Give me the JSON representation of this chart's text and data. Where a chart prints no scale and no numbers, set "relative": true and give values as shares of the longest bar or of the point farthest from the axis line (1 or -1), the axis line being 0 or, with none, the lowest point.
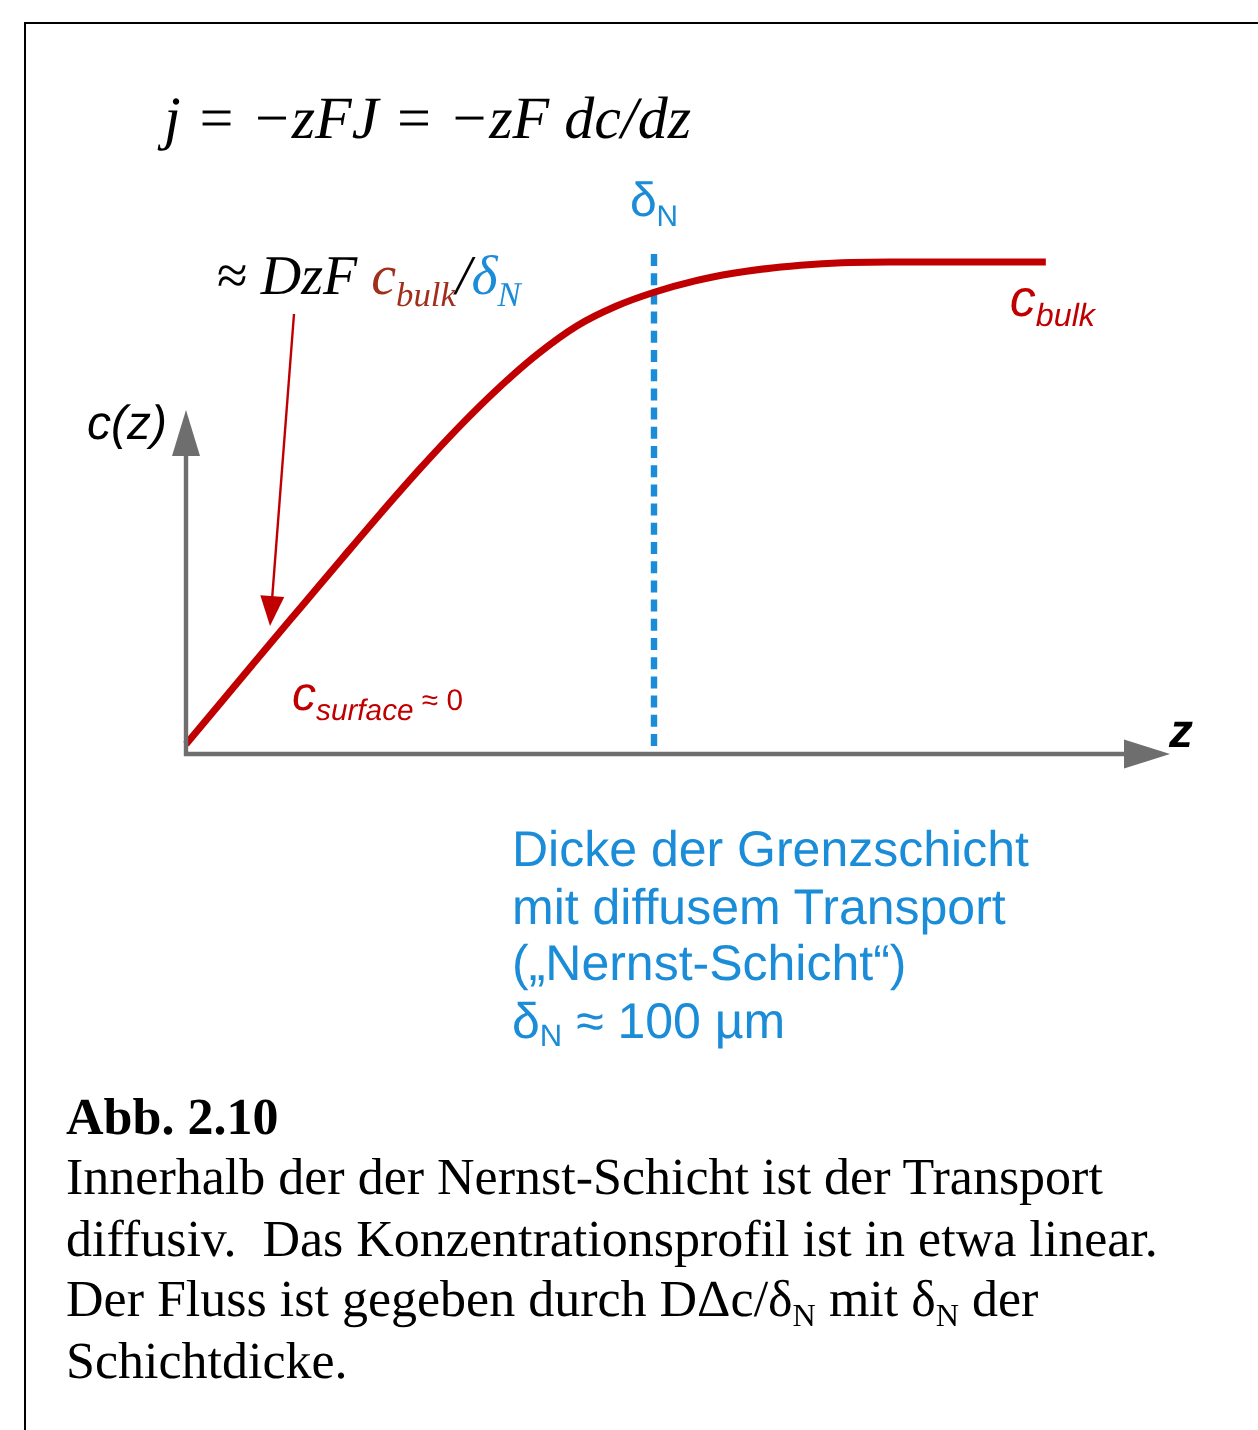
{
  "chart_data": {
    "type": "line",
    "relative": true,
    "xlabel": "z",
    "ylabel": "c(z)",
    "categories": [
      null,
      null,
      null,
      null,
      null,
      null,
      null,
      null,
      null,
      null,
      null,
      null,
      null,
      null,
      null,
      null,
      null,
      null,
      null,
      null,
      null,
      null,
      null
    ],
    "series": [
      {
        "name": "c$_{bulk}$",
        "color": "#c00000",
        "values": [
          0.02,
          0.115,
          0.21,
          0.304,
          0.398,
          0.491,
          0.581,
          0.666,
          0.744,
          0.813,
          0.87,
          0.91,
          0.939,
          0.961,
          0.977,
          0.988,
          0.995,
          0.999,
          1,
          1,
          1,
          1,
          1
        ]
      }
    ],
    "annotations": [
      "j = −zFJ = −zF dc/dz",
      "δ$_{N}$",
      "≈ DzF c$_{bulk}$/δ$_{N}$",
      "c$_{surface}$ ≈ 0",
      "Dicke der Grenzschicht\nmit diffusem Transport\n(„Nernst-Schicht“)\nδ$_{N}$ ≈ 100 µm",
      "Abb. 2.10",
      "Innerhalb der der Nernst-Schicht ist der Transport diffusiv.  Das Konzentrationsprofil ist in etwa linear. Der Fluss ist gegeben durch DΔc/δ$_{N}$ mit δ$_{N}$ der Schichtdicke."
    ]
  }
}
